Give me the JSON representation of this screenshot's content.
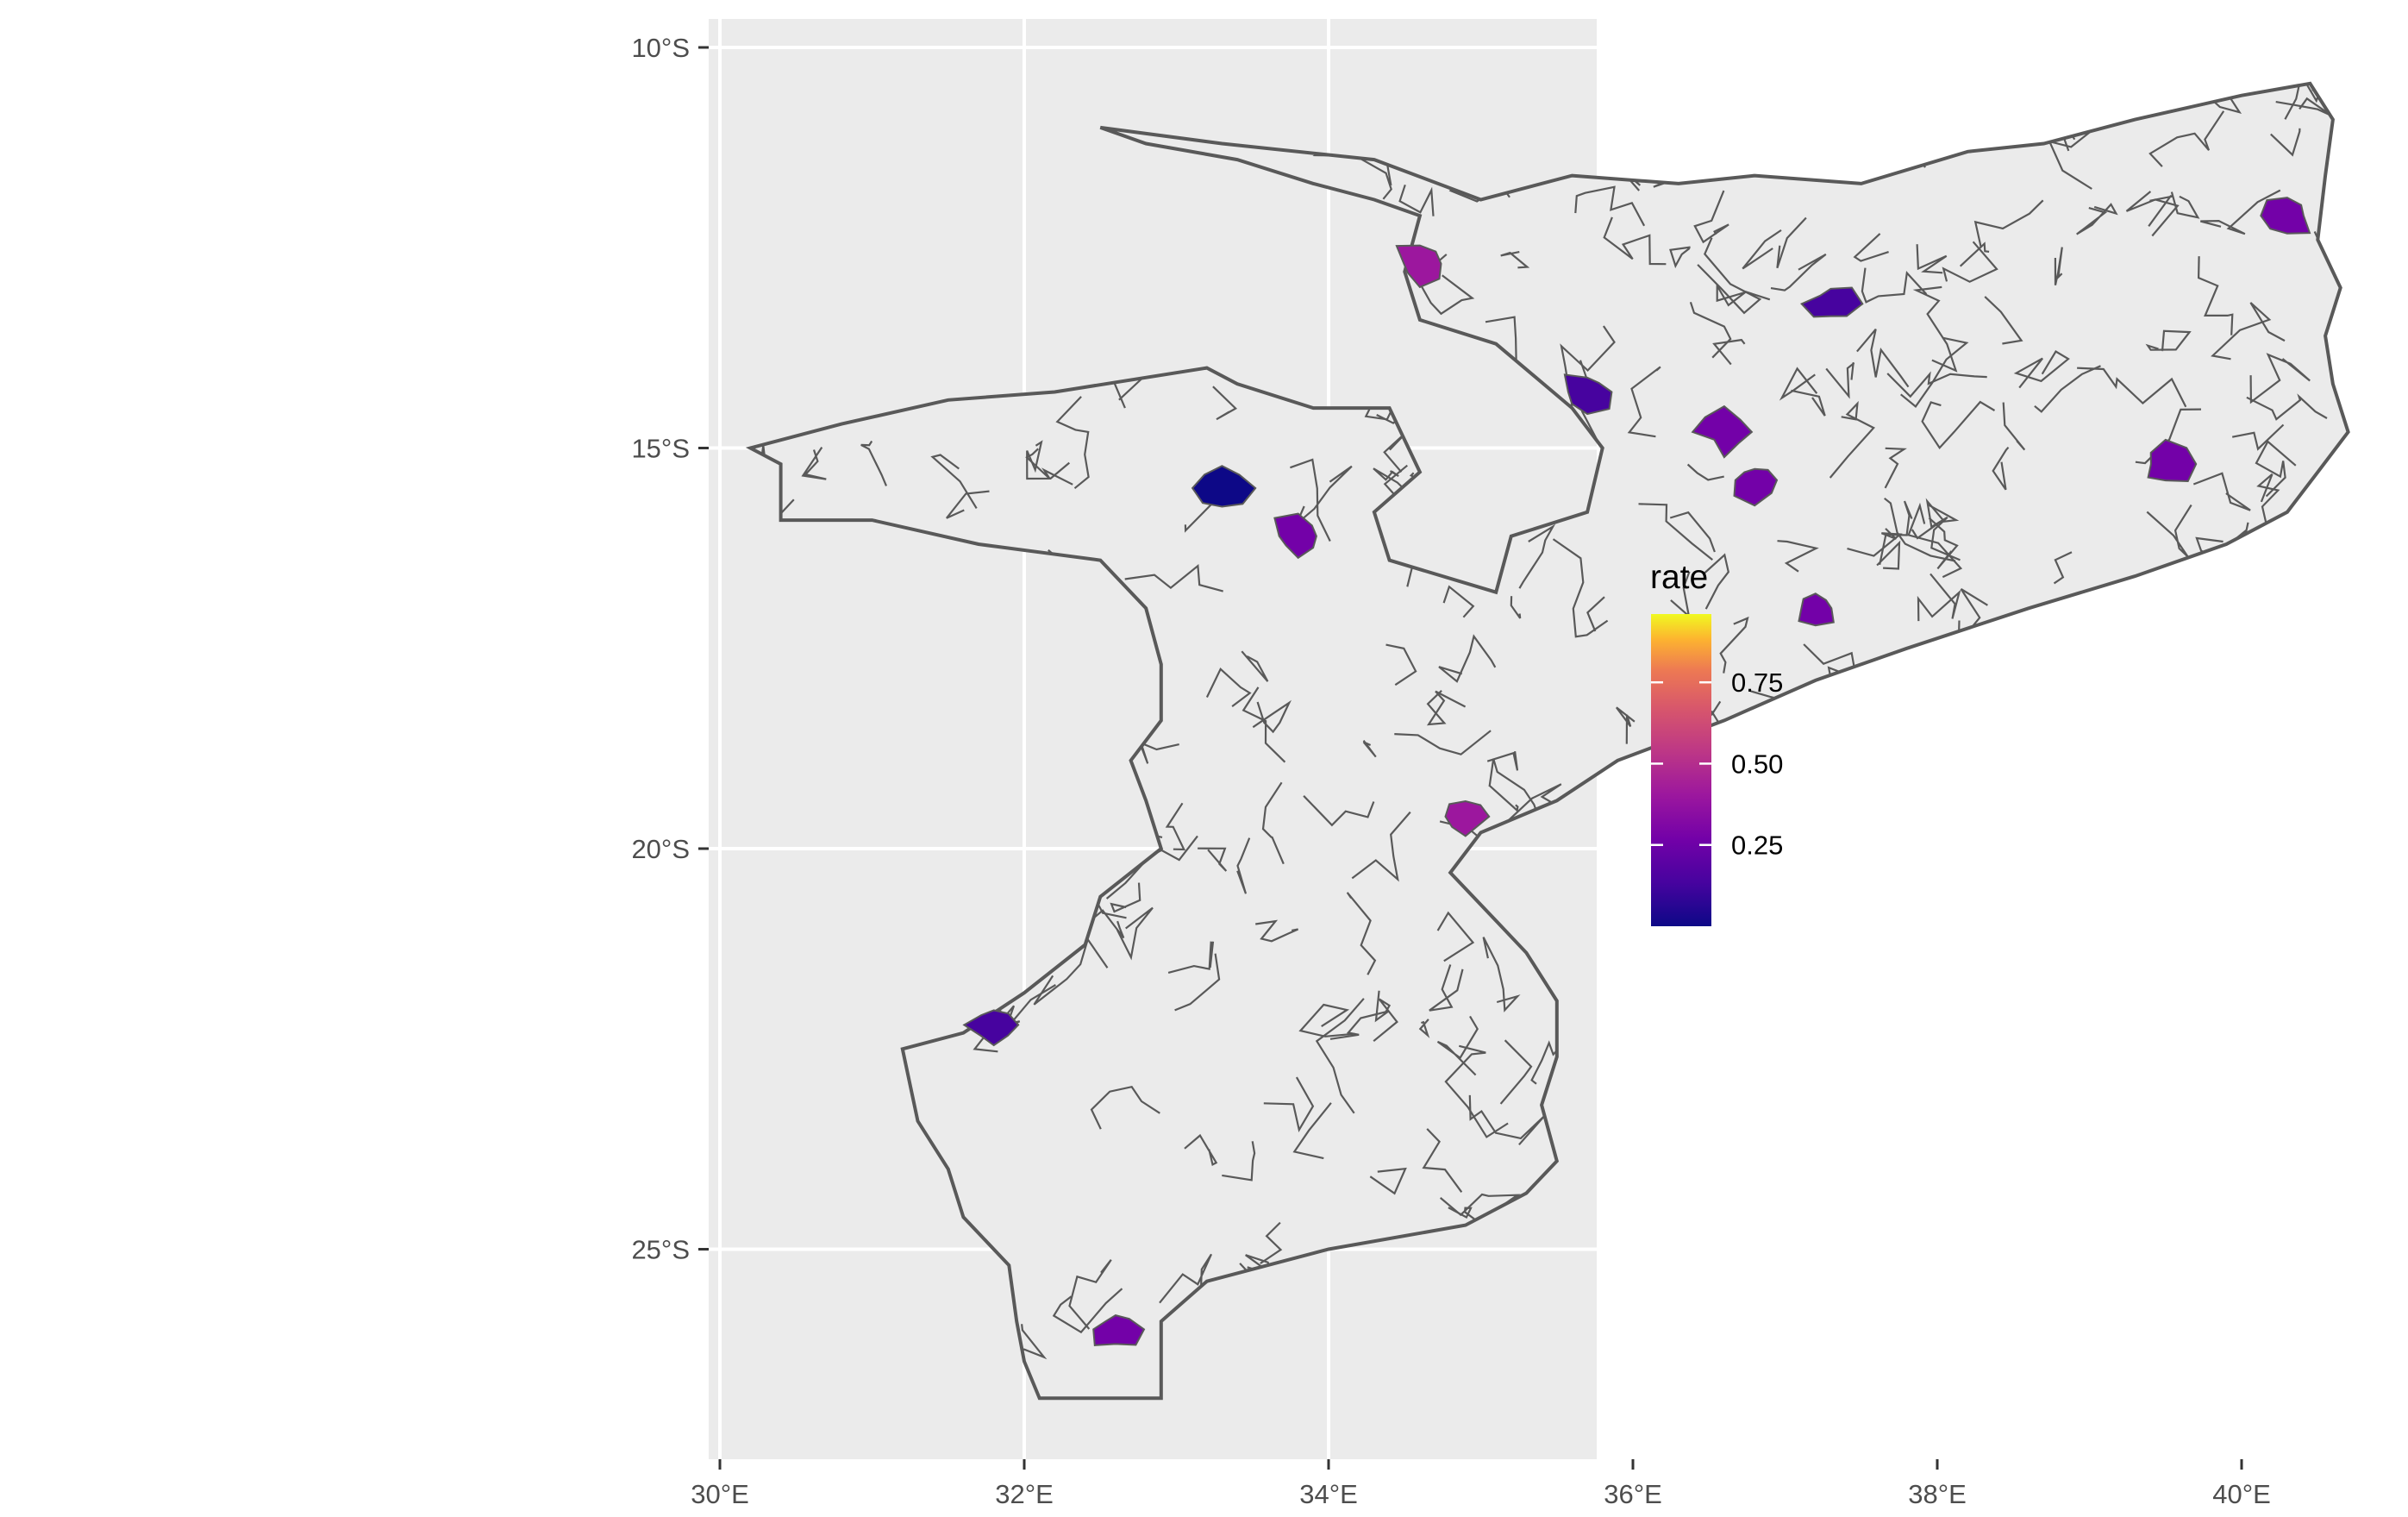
{
  "chart_data": {
    "type": "choropleth-map",
    "region": "Mozambique",
    "xlabel": "",
    "ylabel": "",
    "x_ticks": [
      {
        "value": 30,
        "label": "30°E"
      },
      {
        "value": 32,
        "label": "32°E"
      },
      {
        "value": 34,
        "label": "34°E"
      },
      {
        "value": 36,
        "label": "36°E"
      },
      {
        "value": 38,
        "label": "38°E"
      },
      {
        "value": 40,
        "label": "40°E"
      }
    ],
    "y_ticks": [
      {
        "value": -10,
        "label": "10°S"
      },
      {
        "value": -15,
        "label": "15°S"
      },
      {
        "value": -20,
        "label": "20°S"
      },
      {
        "value": -25,
        "label": "25°S"
      }
    ],
    "xlim": [
      29.8,
      41.2
    ],
    "ylim": [
      -27.8,
      -9.6
    ],
    "grid": true,
    "legend": {
      "title": "rate",
      "position": "right",
      "scale": "plasma",
      "range": [
        0,
        0.96
      ],
      "breaks": [
        {
          "value": 0.25,
          "label": "0.25"
        },
        {
          "value": 0.5,
          "label": "0.50"
        },
        {
          "value": 0.75,
          "label": "0.75"
        }
      ]
    },
    "colors": {
      "panel": "#ebebeb",
      "gridline": "#ffffff",
      "land": "#ebebeb",
      "border": "#595959"
    },
    "outline_lonlat": [
      [
        32.5,
        -11.0
      ],
      [
        33.3,
        -11.2
      ],
      [
        34.3,
        -11.4
      ],
      [
        35.0,
        -11.9
      ],
      [
        35.6,
        -11.6
      ],
      [
        36.3,
        -11.7
      ],
      [
        36.8,
        -11.6
      ],
      [
        37.5,
        -11.7
      ],
      [
        38.2,
        -11.3
      ],
      [
        38.7,
        -11.2
      ],
      [
        39.3,
        -10.9
      ],
      [
        40.0,
        -10.6
      ],
      [
        40.45,
        -10.45
      ],
      [
        40.6,
        -10.9
      ],
      [
        40.55,
        -11.6
      ],
      [
        40.5,
        -12.4
      ],
      [
        40.65,
        -13.0
      ],
      [
        40.55,
        -13.6
      ],
      [
        40.6,
        -14.2
      ],
      [
        40.7,
        -14.8
      ],
      [
        40.5,
        -15.3
      ],
      [
        40.3,
        -15.8
      ],
      [
        39.9,
        -16.2
      ],
      [
        39.3,
        -16.6
      ],
      [
        38.6,
        -17.0
      ],
      [
        37.8,
        -17.5
      ],
      [
        37.2,
        -17.9
      ],
      [
        36.6,
        -18.4
      ],
      [
        35.9,
        -18.9
      ],
      [
        35.5,
        -19.4
      ],
      [
        35.0,
        -19.8
      ],
      [
        34.8,
        -20.3
      ],
      [
        35.1,
        -20.9
      ],
      [
        35.3,
        -21.3
      ],
      [
        35.5,
        -21.9
      ],
      [
        35.5,
        -22.6
      ],
      [
        35.4,
        -23.2
      ],
      [
        35.5,
        -23.9
      ],
      [
        35.3,
        -24.3
      ],
      [
        34.9,
        -24.7
      ],
      [
        34.0,
        -25.0
      ],
      [
        33.2,
        -25.4
      ],
      [
        32.9,
        -25.9
      ],
      [
        32.9,
        -26.3
      ],
      [
        32.9,
        -26.86
      ],
      [
        32.1,
        -26.86
      ],
      [
        32.0,
        -26.4
      ],
      [
        31.95,
        -25.9
      ],
      [
        31.9,
        -25.2
      ],
      [
        31.6,
        -24.6
      ],
      [
        31.5,
        -24.0
      ],
      [
        31.3,
        -23.4
      ],
      [
        31.2,
        -22.5
      ],
      [
        31.6,
        -22.3
      ],
      [
        32.0,
        -21.8
      ],
      [
        32.4,
        -21.2
      ],
      [
        32.5,
        -20.6
      ],
      [
        32.9,
        -20.0
      ],
      [
        32.8,
        -19.4
      ],
      [
        32.7,
        -18.9
      ],
      [
        32.9,
        -18.4
      ],
      [
        32.9,
        -17.7
      ],
      [
        32.8,
        -17.0
      ],
      [
        32.5,
        -16.4
      ],
      [
        31.7,
        -16.2
      ],
      [
        31.0,
        -15.9
      ],
      [
        30.4,
        -15.9
      ],
      [
        30.4,
        -15.2
      ],
      [
        30.2,
        -15.0
      ],
      [
        30.8,
        -14.7
      ],
      [
        31.5,
        -14.4
      ],
      [
        32.2,
        -14.3
      ],
      [
        33.2,
        -14.0
      ],
      [
        33.4,
        -14.2
      ],
      [
        33.9,
        -14.5
      ],
      [
        34.4,
        -14.5
      ],
      [
        34.6,
        -15.3
      ],
      [
        34.3,
        -15.8
      ],
      [
        34.4,
        -16.4
      ],
      [
        35.1,
        -16.8
      ],
      [
        35.2,
        -16.1
      ],
      [
        35.7,
        -15.8
      ],
      [
        35.8,
        -15.0
      ],
      [
        35.6,
        -14.5
      ],
      [
        35.1,
        -13.7
      ],
      [
        34.6,
        -13.4
      ],
      [
        34.5,
        -12.8
      ],
      [
        34.6,
        -12.1
      ],
      [
        34.3,
        -11.9
      ],
      [
        33.9,
        -11.7
      ],
      [
        33.4,
        -11.4
      ],
      [
        32.8,
        -11.2
      ]
    ],
    "hotspots": [
      {
        "lon": 33.3,
        "lat": -15.5,
        "rate": 0.1
      },
      {
        "lon": 33.8,
        "lat": -16.1,
        "rate": 0.35
      },
      {
        "lon": 37.2,
        "lat": -17.0,
        "rate": 0.38
      },
      {
        "lon": 36.8,
        "lat": -15.4,
        "rate": 0.3
      },
      {
        "lon": 39.5,
        "lat": -15.2,
        "rate": 0.4
      },
      {
        "lon": 36.6,
        "lat": -14.8,
        "rate": 0.35
      },
      {
        "lon": 34.9,
        "lat": -19.6,
        "rate": 0.45
      },
      {
        "lon": 31.8,
        "lat": -22.2,
        "rate": 0.2
      },
      {
        "lon": 32.6,
        "lat": -26.0,
        "rate": 0.3
      },
      {
        "lon": 35.7,
        "lat": -14.3,
        "rate": 0.25
      },
      {
        "lon": 40.3,
        "lat": -12.1,
        "rate": 0.3
      },
      {
        "lon": 34.6,
        "lat": -12.7,
        "rate": 0.5
      },
      {
        "lon": 37.3,
        "lat": -13.2,
        "rate": 0.2
      }
    ]
  }
}
